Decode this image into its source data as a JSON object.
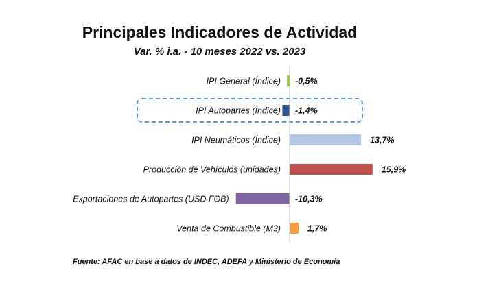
{
  "chart_data": {
    "type": "bar",
    "orientation": "horizontal",
    "title": "Principales Indicadores de Actividad",
    "subtitle": "Var. % i.a. - 10 meses 2022 vs. 2023",
    "categories": [
      "IPI General (Índice)",
      "IPI Autopartes (Índice)",
      "IPI Neumáticos (Índice)",
      "Producción de Vehículos (unidades)",
      "Exportaciones de Autopartes (USD FOB)",
      "Venta de Combustible (M3)"
    ],
    "values": [
      -0.5,
      -1.4,
      13.7,
      15.9,
      -10.3,
      1.7
    ],
    "value_labels": [
      "-0,5%",
      "-1,4%",
      "13,7%",
      "15,9%",
      "-10,3%",
      "1,7%"
    ],
    "colors": [
      "#8cc63f",
      "#2f5597",
      "#b4c7e7",
      "#c0504d",
      "#8064a2",
      "#f59d3d"
    ],
    "highlighted_index": 1,
    "highlight_color": "#5b9bd5",
    "source": "Fuente: AFAC en base a datos de INDEC, ADEFA y Ministerio de Economía"
  }
}
